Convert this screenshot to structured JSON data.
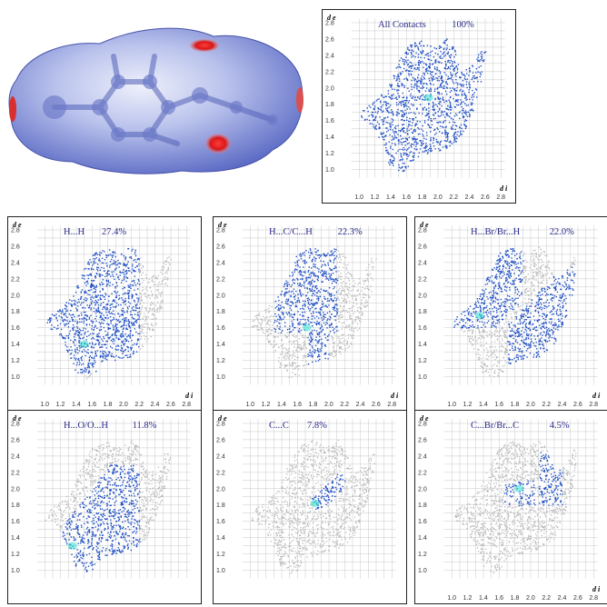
{
  "chart_data": [
    {
      "type": "scatter",
      "title": "All Contacts",
      "percent": "100%",
      "mode": "full",
      "xlabel": "d i",
      "ylabel": "d e",
      "xticks": [
        "1.0",
        "1.2",
        "1.4",
        "1.6",
        "1.8",
        "2.0",
        "2.2",
        "2.4",
        "2.6",
        "2.8"
      ],
      "yticks": [
        "1.0",
        "1.2",
        "1.4",
        "1.6",
        "1.8",
        "2.0",
        "2.2",
        "2.4",
        "2.6",
        "2.8"
      ],
      "xlim": [
        0.8,
        2.9
      ],
      "ylim": [
        0.85,
        2.9
      ],
      "grid": true,
      "x_range": [
        1.0,
        2.62
      ],
      "y_range": [
        0.95,
        2.62
      ]
    },
    {
      "type": "scatter",
      "title": "H...H",
      "percent": "27.4%",
      "mode": "hh",
      "xlabel": "d i",
      "ylabel": "d e",
      "xticks": [
        "1.0",
        "1.2",
        "1.4",
        "1.6",
        "1.8",
        "2.0",
        "2.2",
        "2.4",
        "2.6",
        "2.8"
      ],
      "yticks": [
        "1.0",
        "1.2",
        "1.4",
        "1.6",
        "1.8",
        "2.0",
        "2.2",
        "2.4",
        "2.6",
        "2.8"
      ],
      "xlim": [
        0.8,
        2.9
      ],
      "ylim": [
        0.85,
        2.9
      ],
      "grid": true,
      "x_range": [
        1.08,
        2.2
      ],
      "y_range": [
        1.05,
        2.62
      ]
    },
    {
      "type": "scatter",
      "title": "H...C/C...H",
      "percent": "22.3%",
      "mode": "hc",
      "xlabel": "d i",
      "ylabel": "d e",
      "xticks": [
        "1.0",
        "1.2",
        "1.4",
        "1.6",
        "1.8",
        "2.0",
        "2.2",
        "2.4",
        "2.6",
        "2.8"
      ],
      "yticks": [
        "1.0",
        "1.2",
        "1.4",
        "1.6",
        "1.8",
        "2.0",
        "2.2",
        "2.4",
        "2.6",
        "2.8"
      ],
      "xlim": [
        0.8,
        2.9
      ],
      "ylim": [
        0.85,
        2.9
      ],
      "grid": true,
      "x_range": [
        1.3,
        2.1
      ],
      "y_range": [
        1.05,
        2.62
      ]
    },
    {
      "type": "scatter",
      "title": "H...Br/Br...H",
      "percent": "22.0%",
      "mode": "hbr",
      "xlabel": "d i",
      "ylabel": "d e",
      "xticks": [
        "1.0",
        "1.2",
        "1.4",
        "1.6",
        "1.8",
        "2.0",
        "2.2",
        "2.4",
        "2.6",
        "2.8"
      ],
      "yticks": [
        "1.0",
        "1.2",
        "1.4",
        "1.6",
        "1.8",
        "2.0",
        "2.2",
        "2.4",
        "2.6",
        "2.8"
      ],
      "xlim": [
        0.8,
        2.9
      ],
      "ylim": [
        0.85,
        2.9
      ],
      "grid": true,
      "x_range": [
        1.0,
        2.45
      ],
      "y_range": [
        0.95,
        2.62
      ]
    },
    {
      "type": "scatter",
      "title": "H...O/O...H",
      "percent": "11.8%",
      "mode": "ho",
      "xlabel": "",
      "ylabel": "d e",
      "xticks": [],
      "yticks": [
        "1.0",
        "1.2",
        "1.4",
        "1.6",
        "1.8",
        "2.0",
        "2.2",
        "2.4",
        "2.6",
        "2.8"
      ],
      "xlim": [
        0.8,
        2.9
      ],
      "ylim": [
        0.85,
        2.9
      ],
      "grid": true,
      "x_range": [
        0.95,
        2.2
      ],
      "y_range": [
        0.95,
        2.3
      ]
    },
    {
      "type": "scatter",
      "title": "C...C",
      "percent": "7.8%",
      "mode": "cc",
      "xlabel": "",
      "ylabel": "d e",
      "xticks": [],
      "yticks": [
        "1.0",
        "1.2",
        "1.4",
        "1.6",
        "1.8",
        "2.0",
        "2.2",
        "2.4",
        "2.6",
        "2.8"
      ],
      "xlim": [
        0.8,
        2.9
      ],
      "ylim": [
        0.85,
        2.9
      ],
      "grid": true,
      "x_range": [
        1.78,
        2.2
      ],
      "y_range": [
        1.75,
        2.2
      ]
    },
    {
      "type": "scatter",
      "title": "C...Br/Br...C",
      "percent": "4.5%",
      "mode": "cbr",
      "xlabel": "d i",
      "ylabel": "d e",
      "xticks": [
        "1.0",
        "1.2",
        "1.4",
        "1.6",
        "1.8",
        "2.0",
        "2.2",
        "2.4",
        "2.6",
        "2.8"
      ],
      "yticks": [
        "1.0",
        "1.2",
        "1.4",
        "1.6",
        "1.8",
        "2.0",
        "2.2",
        "2.4",
        "2.6",
        "2.8"
      ],
      "xlim": [
        0.8,
        2.9
      ],
      "ylim": [
        0.85,
        2.9
      ],
      "grid": true,
      "x_range": [
        1.65,
        2.45
      ],
      "y_range": [
        1.75,
        2.45
      ]
    }
  ],
  "colors": {
    "contact": "#1f4fc4",
    "hot": "#2ee0d0",
    "background": "#b9b9b9",
    "grid": "#c8c8c8"
  }
}
